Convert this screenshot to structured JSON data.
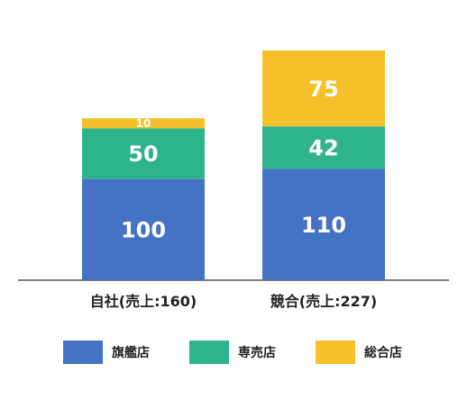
{
  "chart_data": {
    "type": "bar",
    "stacked": true,
    "categories": [
      "自社(売上:160)",
      "競合(売上:227)"
    ],
    "series": [
      {
        "name": "旗艦店",
        "values": [
          100,
          110
        ],
        "color": "#4472C4"
      },
      {
        "name": "専売店",
        "values": [
          50,
          42
        ],
        "color": "#2FB38D"
      },
      {
        "name": "総合店",
        "values": [
          10,
          75
        ],
        "color": "#F6C02A"
      }
    ],
    "ylim": [
      0,
      227
    ],
    "grid": false,
    "legend_position": "bottom"
  }
}
